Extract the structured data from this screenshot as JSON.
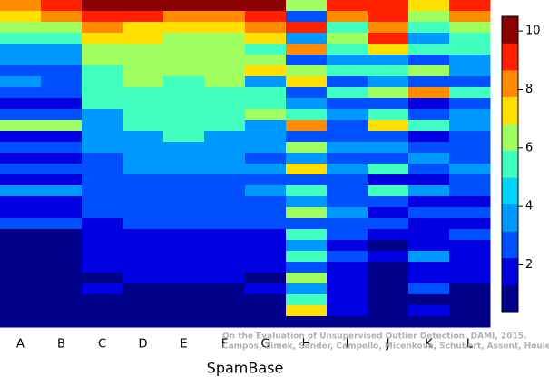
{
  "chart_data": {
    "type": "heatmap",
    "xlabel": "SpamBase",
    "columns": [
      "A",
      "B",
      "C",
      "D",
      "E",
      "F",
      "G",
      "H",
      "I",
      "J",
      "K",
      "L"
    ],
    "values": [
      [
        8,
        9,
        10,
        10,
        10,
        10,
        10,
        6,
        9,
        9,
        7,
        9
      ],
      [
        7,
        8,
        9,
        9,
        8,
        8,
        9,
        3,
        8,
        9,
        6,
        8
      ],
      [
        6,
        6,
        8,
        7,
        7,
        7,
        8,
        9,
        5,
        8,
        5,
        6
      ],
      [
        5,
        5,
        7,
        7,
        6,
        6,
        7,
        4,
        6,
        9,
        4,
        5
      ],
      [
        4,
        4,
        6,
        6,
        6,
        6,
        5,
        8,
        5,
        7,
        5,
        5
      ],
      [
        4,
        4,
        6,
        6,
        6,
        6,
        6,
        3,
        4,
        4,
        3,
        4
      ],
      [
        3,
        3,
        5,
        6,
        6,
        6,
        7,
        6,
        5,
        5,
        6,
        4
      ],
      [
        4,
        3,
        5,
        6,
        5,
        6,
        4,
        7,
        3,
        4,
        3,
        3
      ],
      [
        3,
        3,
        5,
        5,
        5,
        5,
        5,
        3,
        5,
        6,
        8,
        5
      ],
      [
        2,
        2,
        5,
        5,
        5,
        5,
        5,
        4,
        3,
        3,
        2,
        3
      ],
      [
        3,
        3,
        4,
        5,
        5,
        5,
        6,
        5,
        4,
        5,
        3,
        4
      ],
      [
        6,
        6,
        4,
        5,
        5,
        5,
        4,
        8,
        3,
        7,
        5,
        4
      ],
      [
        2,
        2,
        4,
        4,
        5,
        4,
        4,
        3,
        3,
        3,
        2,
        3
      ],
      [
        3,
        3,
        4,
        4,
        4,
        4,
        4,
        6,
        4,
        4,
        3,
        3
      ],
      [
        2,
        2,
        3,
        4,
        4,
        4,
        3,
        4,
        3,
        3,
        4,
        3
      ],
      [
        3,
        3,
        3,
        4,
        4,
        4,
        4,
        7,
        4,
        5,
        3,
        4
      ],
      [
        2,
        2,
        3,
        3,
        3,
        3,
        3,
        3,
        3,
        2,
        2,
        3
      ],
      [
        4,
        4,
        3,
        3,
        3,
        3,
        4,
        5,
        3,
        5,
        4,
        3
      ],
      [
        2,
        2,
        3,
        3,
        3,
        3,
        3,
        4,
        3,
        3,
        2,
        2
      ],
      [
        2,
        2,
        3,
        3,
        3,
        3,
        3,
        6,
        4,
        2,
        3,
        3
      ],
      [
        3,
        3,
        2,
        3,
        3,
        3,
        3,
        3,
        3,
        3,
        2,
        2
      ],
      [
        1,
        1,
        2,
        2,
        2,
        2,
        2,
        5,
        3,
        2,
        2,
        3
      ],
      [
        1,
        1,
        2,
        2,
        2,
        2,
        2,
        4,
        2,
        1,
        2,
        2
      ],
      [
        1,
        1,
        2,
        2,
        2,
        2,
        2,
        5,
        3,
        2,
        4,
        2
      ],
      [
        1,
        1,
        2,
        2,
        2,
        2,
        2,
        3,
        2,
        1,
        2,
        2
      ],
      [
        1,
        1,
        1,
        2,
        2,
        2,
        1,
        6,
        2,
        1,
        2,
        2
      ],
      [
        1,
        1,
        2,
        1,
        1,
        1,
        2,
        4,
        2,
        1,
        3,
        1
      ],
      [
        1,
        1,
        1,
        1,
        1,
        1,
        1,
        5,
        2,
        1,
        1,
        1
      ],
      [
        1,
        1,
        1,
        1,
        1,
        1,
        1,
        7,
        2,
        1,
        2,
        1
      ],
      [
        1,
        1,
        1,
        1,
        1,
        1,
        1,
        1,
        1,
        1,
        1,
        1
      ]
    ],
    "colors": [
      "#00008b",
      "#0000e0",
      "#0050ff",
      "#0099ff",
      "#00d5ff",
      "#40ffbf",
      "#a0ff60",
      "#ffe000",
      "#ff8c00",
      "#ff2000",
      "#8b0000"
    ],
    "zlim": [
      0.4,
      10.5
    ],
    "zticks": [
      2,
      4,
      6,
      8,
      10
    ],
    "footnote": [
      "On the Evaluation of Unsupervised Outlier Detection. DAMI, 2015.",
      "Campos, Zimek, Sander, Campello, Micenková, Schubert, Assent, Houle"
    ]
  }
}
